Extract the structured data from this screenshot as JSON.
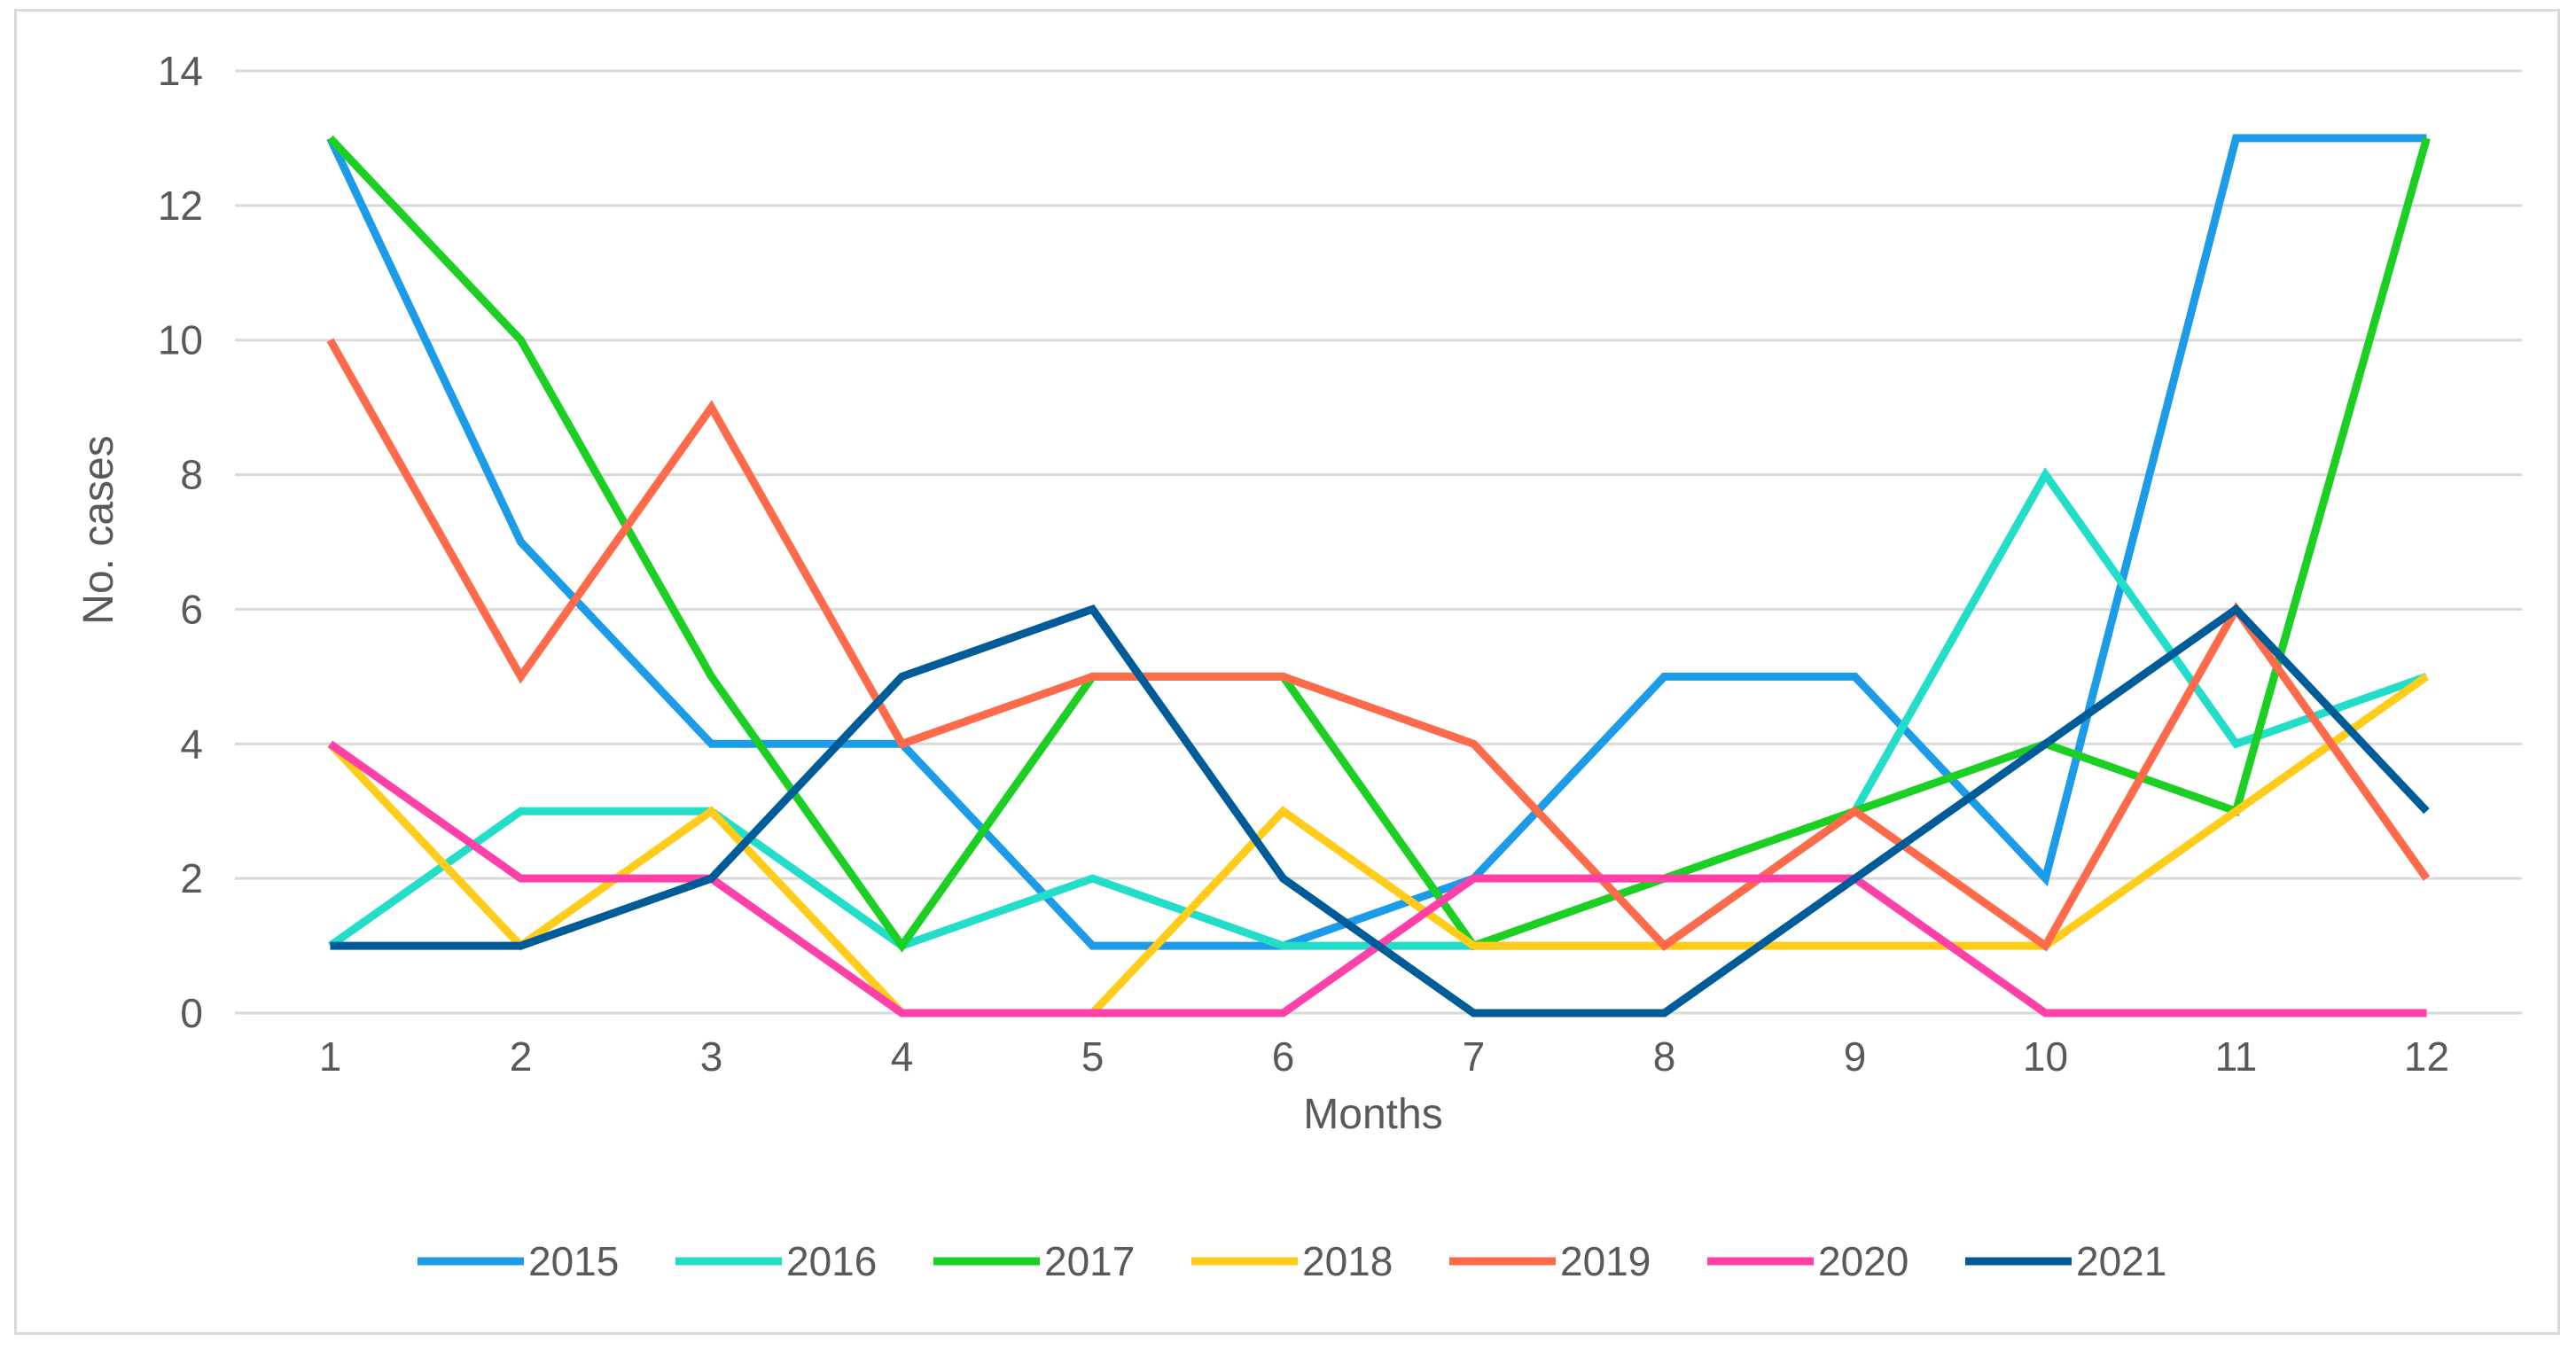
{
  "chart_data": {
    "type": "line",
    "title": "",
    "xlabel": "Months",
    "ylabel": "No. cases",
    "x": [
      1,
      2,
      3,
      4,
      5,
      6,
      7,
      8,
      9,
      10,
      11,
      12
    ],
    "x_tick_labels": [
      "1",
      "2",
      "3",
      "4",
      "5",
      "6",
      "7",
      "8",
      "9",
      "10",
      "11",
      "12"
    ],
    "ylim": [
      0,
      14
    ],
    "y_ticks": [
      0,
      2,
      4,
      6,
      8,
      10,
      12,
      14
    ],
    "grid": "horizontal",
    "legend_position": "bottom",
    "series": [
      {
        "name": "2015",
        "color": "#1B9BE8",
        "values": [
          13,
          7,
          4,
          4,
          1,
          1,
          2,
          5,
          5,
          2,
          13,
          13
        ]
      },
      {
        "name": "2016",
        "color": "#22DDC8",
        "values": [
          1,
          3,
          3,
          1,
          2,
          1,
          1,
          1,
          3,
          8,
          4,
          5
        ]
      },
      {
        "name": "2017",
        "color": "#1CCF23",
        "values": [
          13,
          10,
          5,
          1,
          5,
          5,
          1,
          2,
          3,
          4,
          3,
          13
        ]
      },
      {
        "name": "2018",
        "color": "#FFCC1A",
        "values": [
          4,
          1,
          3,
          0,
          0,
          3,
          1,
          1,
          1,
          1,
          3,
          5
        ]
      },
      {
        "name": "2019",
        "color": "#FF6B4A",
        "values": [
          10,
          5,
          9,
          4,
          5,
          5,
          4,
          1,
          3,
          1,
          6,
          2
        ]
      },
      {
        "name": "2020",
        "color": "#FF40A8",
        "values": [
          4,
          2,
          2,
          0,
          0,
          0,
          2,
          2,
          2,
          0,
          0,
          0
        ]
      },
      {
        "name": "2021",
        "color": "#005B99",
        "values": [
          1,
          1,
          2,
          5,
          6,
          2,
          0,
          0,
          2,
          4,
          6,
          3
        ]
      }
    ]
  }
}
